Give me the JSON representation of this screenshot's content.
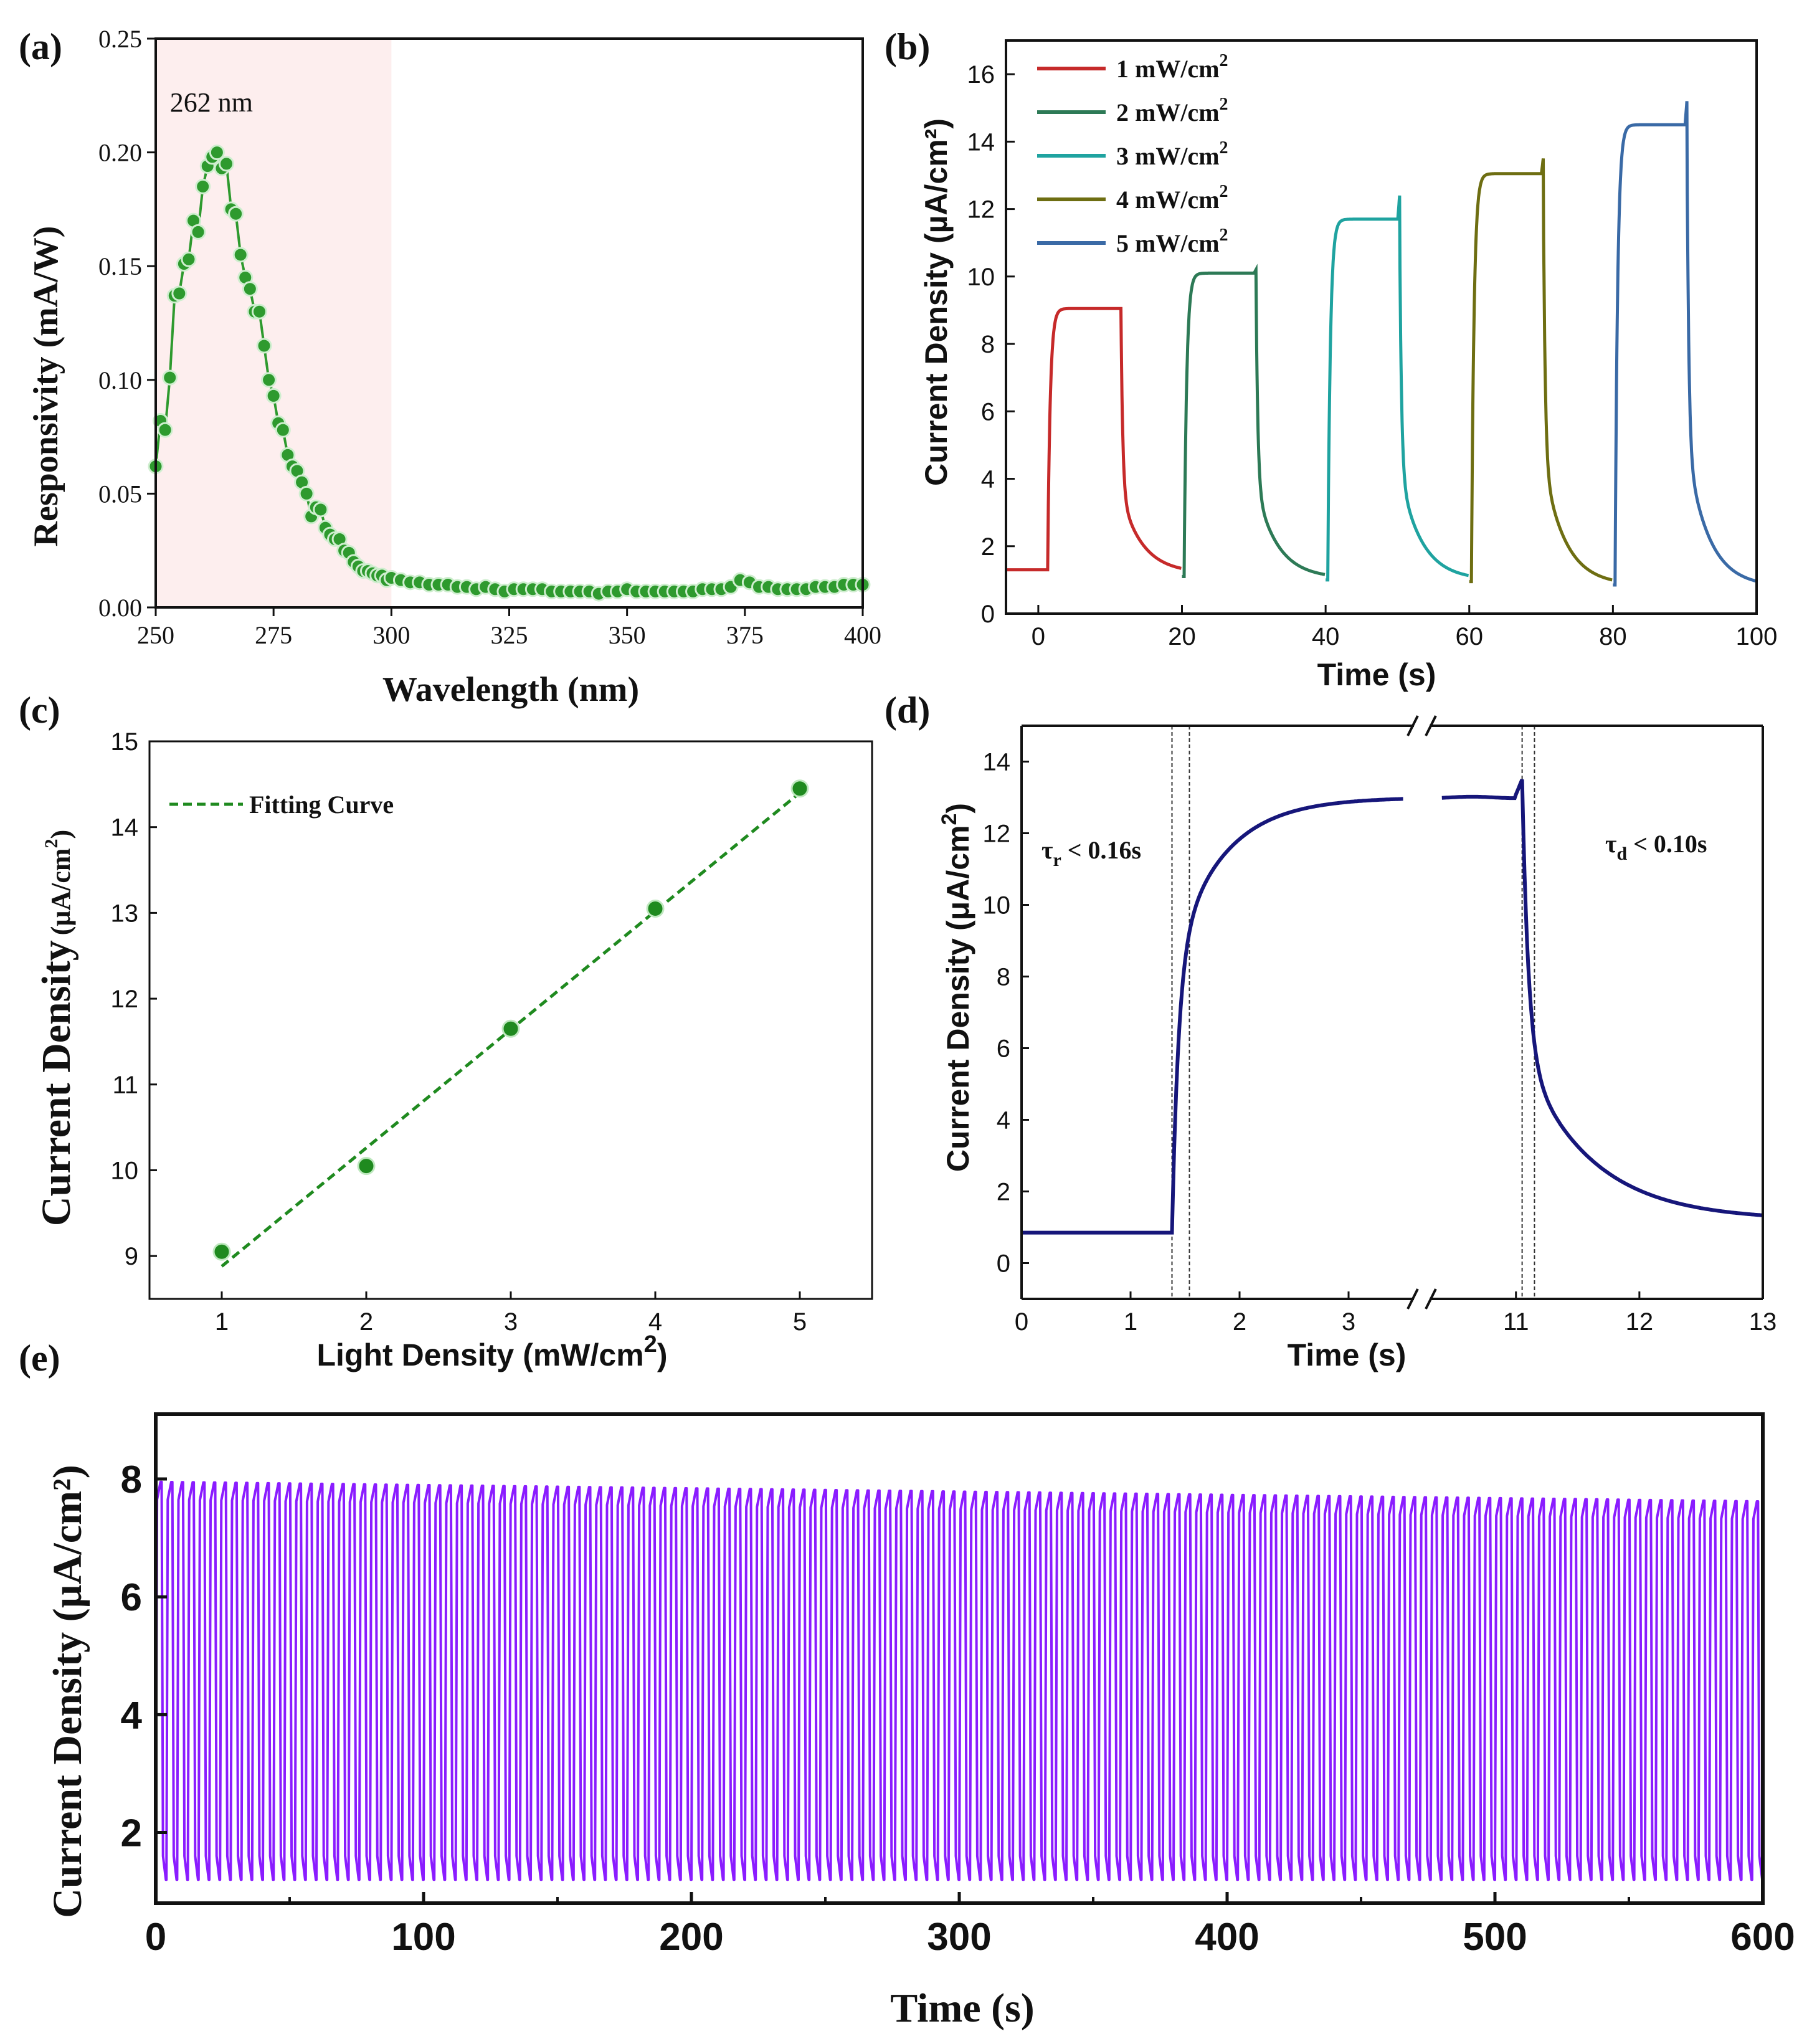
{
  "chart_data": [
    {
      "id": "a",
      "panel_label": "(a)",
      "type": "line",
      "xlabel": "Wavelength (nm)",
      "ylabel": "Responsivity (mA/W)",
      "xlim": [
        250,
        400
      ],
      "ylim": [
        0,
        0.25
      ],
      "xticks": [
        "250",
        "275",
        "300",
        "325",
        "350",
        "375",
        "400"
      ],
      "yticks": [
        "0.00",
        "0.05",
        "0.10",
        "0.15",
        "0.20",
        "0.25"
      ],
      "annotation": "262 nm",
      "shaded_region": [
        250,
        300
      ],
      "color": "#2e9a2e",
      "series": [
        {
          "x": [
            250,
            251,
            252,
            253,
            254,
            255,
            256,
            257,
            258,
            259,
            260,
            261,
            262,
            263,
            264,
            265,
            266,
            267,
            268,
            269,
            270,
            271,
            272,
            273,
            274,
            275,
            276,
            277,
            278,
            279,
            280,
            281,
            282,
            283,
            284,
            285,
            286,
            287,
            288,
            289,
            290,
            291,
            292,
            293,
            294,
            295,
            296,
            297,
            298,
            299,
            300,
            302,
            304,
            306,
            308,
            310,
            312,
            314,
            316,
            318,
            320,
            322,
            324,
            326,
            328,
            330,
            332,
            334,
            336,
            338,
            340,
            342,
            344,
            346,
            348,
            350,
            352,
            354,
            356,
            358,
            360,
            362,
            364,
            366,
            368,
            370,
            372,
            374,
            376,
            378,
            380,
            382,
            384,
            386,
            388,
            390,
            392,
            394,
            396,
            398,
            400
          ],
          "values": [
            0.062,
            0.082,
            0.078,
            0.101,
            0.137,
            0.138,
            0.151,
            0.153,
            0.17,
            0.165,
            0.185,
            0.194,
            0.198,
            0.2,
            0.193,
            0.195,
            0.175,
            0.173,
            0.155,
            0.145,
            0.14,
            0.13,
            0.13,
            0.115,
            0.1,
            0.093,
            0.081,
            0.078,
            0.067,
            0.062,
            0.06,
            0.055,
            0.05,
            0.04,
            0.044,
            0.043,
            0.035,
            0.032,
            0.03,
            0.03,
            0.025,
            0.024,
            0.02,
            0.018,
            0.016,
            0.016,
            0.015,
            0.014,
            0.014,
            0.012,
            0.013,
            0.012,
            0.011,
            0.011,
            0.01,
            0.01,
            0.01,
            0.009,
            0.009,
            0.008,
            0.009,
            0.008,
            0.007,
            0.008,
            0.008,
            0.008,
            0.008,
            0.007,
            0.007,
            0.007,
            0.007,
            0.007,
            0.006,
            0.007,
            0.007,
            0.008,
            0.007,
            0.007,
            0.007,
            0.007,
            0.007,
            0.007,
            0.007,
            0.008,
            0.008,
            0.008,
            0.009,
            0.012,
            0.011,
            0.009,
            0.009,
            0.008,
            0.008,
            0.008,
            0.008,
            0.009,
            0.009,
            0.009,
            0.01,
            0.01,
            0.01
          ]
        }
      ]
    },
    {
      "id": "b",
      "panel_label": "(b)",
      "type": "line",
      "xlabel": "Time (s)",
      "ylabel": "Current Density (µA/cm²)",
      "xlim": [
        -4.5,
        100
      ],
      "ylim": [
        0,
        17
      ],
      "xticks": [
        "0",
        "20",
        "40",
        "60",
        "80",
        "100"
      ],
      "yticks": [
        "0",
        "2",
        "4",
        "6",
        "8",
        "10",
        "12",
        "14",
        "16"
      ],
      "legend_position": "top-left",
      "series": [
        {
          "name": "1 mW/cm²",
          "legend_base": "1 mW/cm",
          "legend_sup": "2",
          "color": "#c62a2a",
          "t_start": -4.5,
          "t_on": 1.3,
          "t_off": 11.5,
          "t_end": 19.9,
          "dark_start": 1.3,
          "dark_end": 1.2,
          "plateau": 9.05,
          "spike": 9.05
        },
        {
          "name": "2 mW/cm²",
          "legend_base": "2 mW/cm",
          "legend_sup": "2",
          "color": "#2d7a56",
          "t_start": 20.0,
          "t_on": 20.3,
          "t_off": 30.3,
          "t_end": 39.9,
          "dark_start": 1.1,
          "dark_end": 1.05,
          "plateau": 10.1,
          "spike": 10.2
        },
        {
          "name": "3 mW/cm²",
          "legend_base": "3 mW/cm",
          "legend_sup": "2",
          "color": "#1fa3a0",
          "t_start": 40.0,
          "t_on": 40.3,
          "t_off": 50.3,
          "t_end": 59.9,
          "dark_start": 1.0,
          "dark_end": 1.0,
          "plateau": 11.7,
          "spike": 12.4
        },
        {
          "name": "4 mW/cm²",
          "legend_base": "4 mW/cm",
          "legend_sup": "2",
          "color": "#6e6e12",
          "t_start": 60.0,
          "t_on": 60.3,
          "t_off": 70.3,
          "t_end": 79.9,
          "dark_start": 0.95,
          "dark_end": 0.85,
          "plateau": 13.05,
          "spike": 13.5
        },
        {
          "name": "5 mW/cm²",
          "legend_base": "5 mW/cm",
          "legend_sup": "2",
          "color": "#3a6aa6",
          "t_start": 80.0,
          "t_on": 80.3,
          "t_off": 90.3,
          "t_end": 100.0,
          "dark_start": 0.85,
          "dark_end": 0.8,
          "plateau": 14.5,
          "spike": 15.2
        }
      ]
    },
    {
      "id": "c",
      "panel_label": "(c)",
      "type": "scatter",
      "xlabel": "Light Density",
      "xlabel_unit": "(mW/cm",
      "xlabel_sup": "2",
      "xlabel_close": ")",
      "ylabel": "Current Density",
      "ylabel_unit": "(μA/cm",
      "ylabel_sup": "2",
      "ylabel_close": ")",
      "xlim": [
        0.5,
        5.5
      ],
      "ylim": [
        8.5,
        15
      ],
      "xticks": [
        "1",
        "2",
        "3",
        "4",
        "5"
      ],
      "yticks": [
        "9",
        "10",
        "11",
        "12",
        "13",
        "14",
        "15"
      ],
      "legend": "Fitting Curve",
      "legend_position": "top-left",
      "color": "#1f8a1f",
      "x": [
        1,
        2,
        3,
        4,
        5
      ],
      "values": [
        9.05,
        10.05,
        11.65,
        13.05,
        14.45
      ],
      "fit": {
        "x": [
          1,
          5
        ],
        "values": [
          8.88,
          14.4
        ]
      }
    },
    {
      "id": "d",
      "panel_label": "(d)",
      "type": "line",
      "xlabel": "Time (s)",
      "ylabel": "Current Density",
      "ylabel_unit": "(μA/cm",
      "ylabel_sup": "2",
      "ylabel_close": ")",
      "xticks": [
        "0",
        "1",
        "2",
        "3",
        "11",
        "12",
        "13"
      ],
      "yticks": [
        "0",
        "2",
        "4",
        "6",
        "8",
        "10",
        "12",
        "14"
      ],
      "ylim": [
        -1,
        15
      ],
      "axis_break": true,
      "segment1_xlim": [
        0,
        3.6
      ],
      "segment2_xlim": [
        10.3,
        13
      ],
      "color": "#16167a",
      "rise": {
        "label": "τ",
        "sub": "r",
        "rest": " < 0.16s",
        "t_on": 1.38,
        "t_90": 1.54,
        "dark": 0.85,
        "plateau": 13.0
      },
      "decay": {
        "label": "τ",
        "sub": "d",
        "rest": " < 0.10s",
        "t_off": 11.05,
        "t_10": 11.15,
        "spike": 13.5,
        "dark_end": 1.2
      }
    },
    {
      "id": "e",
      "panel_label": "(e)",
      "type": "line",
      "xlabel": "Time (s)",
      "ylabel": "Current Density (µA/cm²)",
      "xlim": [
        0,
        600
      ],
      "ylim": [
        0.8,
        9.1
      ],
      "xticks": [
        "0",
        "100",
        "200",
        "300",
        "400",
        "500",
        "600"
      ],
      "yticks": [
        "2",
        "4",
        "6",
        "8"
      ],
      "color": "#8a1cff",
      "period_s": 4,
      "low": 1.2,
      "high_start": 7.95,
      "high_end": 7.62
    }
  ]
}
